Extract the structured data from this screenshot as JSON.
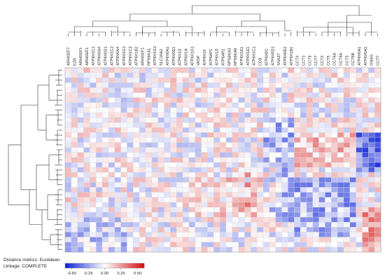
{
  "chart_data": {
    "type": "heatmap",
    "title": "",
    "columns": [
      "ARHGEF7",
      "EZR",
      "ARHGEF1",
      "ARHGEF1",
      "ATP6V1C1",
      "ATP6V0A4",
      "ATP6V0D1",
      "ATP6V1C2",
      "ATP6V0A4",
      "ATP6V1G1",
      "ATP6V1C2",
      "ATP6V1B2",
      "ARHGEF1",
      "RPS6KA1",
      "ATP6V1G3",
      "SLC16A2",
      "ATP6V0A1",
      "ATP6V0E1",
      "ATP6V1D",
      "ATP6V1H",
      "ATP6V1G1",
      "VASP",
      "ATP6V1F",
      "ATP6AP1",
      "ATP6V1D",
      "ATP6AP2",
      "RPS6KA3",
      "RPS6KA6",
      "ATP6V1E1",
      "ATP6V1E1",
      "ATP6V1C1",
      "CD9",
      "ATP6V0C",
      "ATP6V0D1",
      "SNX27",
      "ATP6V0E2",
      "ATP6V1B1",
      "CCT4",
      "CCT3",
      "CCT8",
      "CCT7",
      "CCT2",
      "CCT5",
      "CCT6A",
      "CCT6A",
      "CCT5",
      "CCT6B",
      "ATP6V0A1",
      "ATP6V0A1",
      "GNAS",
      "CCT7"
    ],
    "row_count": 37,
    "row_labels_shown": false,
    "colorbar": {
      "ticks": [
        "-0.50",
        "-0.25",
        "0.00",
        "0.25",
        "0.50"
      ],
      "range": [
        -0.6,
        0.6
      ],
      "low_color": "#0a1fd6",
      "mid_color": "#ffffff",
      "high_color": "#d40a0a"
    },
    "row_dendrogram": true,
    "column_dendrogram": true
  },
  "caption": {
    "distance": "Distance metrics: Euclidean",
    "linkage": "Linkage: COMPLETE"
  }
}
